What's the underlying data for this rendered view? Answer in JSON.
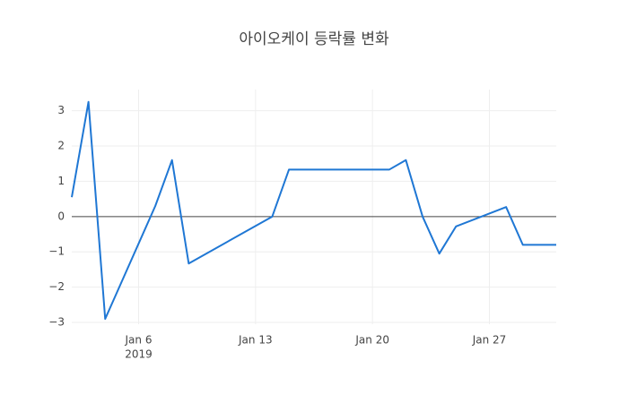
{
  "chart_data": {
    "type": "line",
    "title": "아이오케이 등락률 변화",
    "x": [
      "2019-01-02",
      "2019-01-03",
      "2019-01-04",
      "2019-01-07",
      "2019-01-08",
      "2019-01-09",
      "2019-01-14",
      "2019-01-15",
      "2019-01-21",
      "2019-01-22",
      "2019-01-23",
      "2019-01-24",
      "2019-01-25",
      "2019-01-28",
      "2019-01-29",
      "2019-01-30",
      "2019-01-31"
    ],
    "series": [
      {
        "color": "#1f77d4",
        "values": [
          0.55,
          3.25,
          -2.9,
          0.3,
          1.6,
          -1.33,
          0,
          1.33,
          1.33,
          1.6,
          0,
          -1.05,
          -0.28,
          0.27,
          -0.8,
          -0.8,
          -0.8
        ]
      }
    ],
    "xlim": [
      "2019-01-02",
      "2019-01-31"
    ],
    "xticks": [
      {
        "value": "2019-01-06",
        "label": "Jan 6"
      },
      {
        "value": "2019-01-13",
        "label": "Jan 13"
      },
      {
        "value": "2019-01-20",
        "label": "Jan 20"
      },
      {
        "value": "2019-01-27",
        "label": "Jan 27"
      }
    ],
    "x_year_label": "2019",
    "ylim": [
      -3.05,
      3.6
    ],
    "yticks": [
      {
        "value": -3,
        "label": "−3"
      },
      {
        "value": -2,
        "label": "−2"
      },
      {
        "value": -1,
        "label": "−1"
      },
      0,
      1,
      2,
      3
    ],
    "grid": true,
    "zeroline": true
  }
}
